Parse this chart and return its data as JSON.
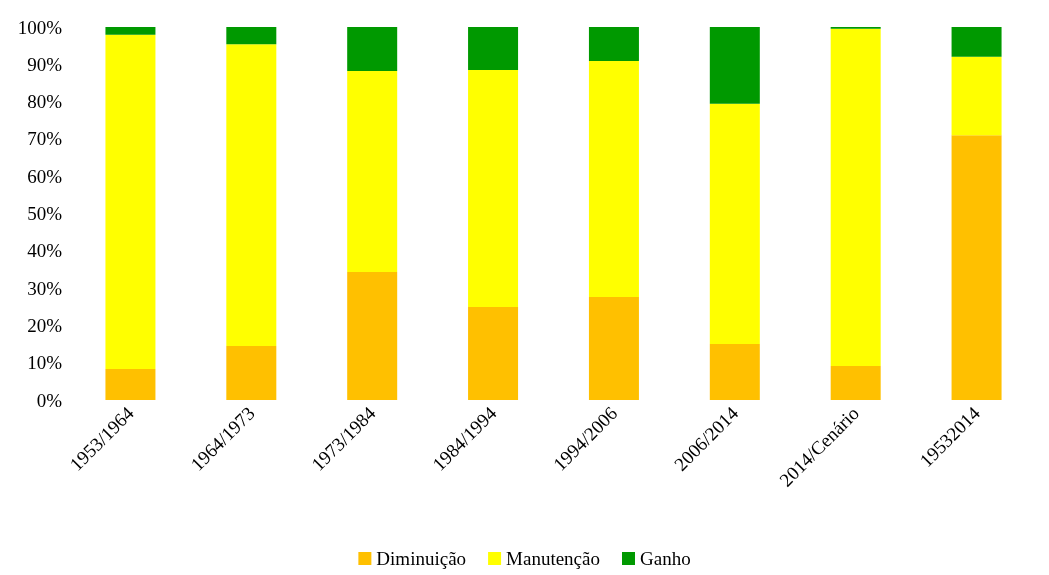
{
  "chart_data": {
    "type": "bar",
    "stacked": true,
    "categories": [
      "1953/1964",
      "1964/1973",
      "1973/1984",
      "1984/1994",
      "1994/2006",
      "2006/2014",
      "2014/Cenário",
      "19532014"
    ],
    "series": [
      {
        "name": "Diminuição",
        "color": "#ffc000",
        "values": [
          8.3,
          14.5,
          34.3,
          24.9,
          27.6,
          15.0,
          9.1,
          71.0
        ]
      },
      {
        "name": "Manutenção",
        "color": "#ffff00",
        "values": [
          89.6,
          80.9,
          53.9,
          63.6,
          63.3,
          64.4,
          90.4,
          21.0
        ]
      },
      {
        "name": "Ganho",
        "color": "#009900",
        "values": [
          2.1,
          4.6,
          11.8,
          11.5,
          9.1,
          20.6,
          0.5,
          8.0
        ]
      }
    ],
    "ylim": [
      0,
      100
    ],
    "yticks": [
      {
        "value": 0,
        "label": "0%"
      },
      {
        "value": 10,
        "label": "10%"
      },
      {
        "value": 20,
        "label": "20%"
      },
      {
        "value": 30,
        "label": "30%"
      },
      {
        "value": 40,
        "label": "40%"
      },
      {
        "value": 50,
        "label": "50%"
      },
      {
        "value": 60,
        "label": "60%"
      },
      {
        "value": 70,
        "label": "70%"
      },
      {
        "value": 80,
        "label": "80%"
      },
      {
        "value": 90,
        "label": "90%"
      },
      {
        "value": 100,
        "label": "100%"
      }
    ],
    "grid": false,
    "legend": "bottom"
  }
}
